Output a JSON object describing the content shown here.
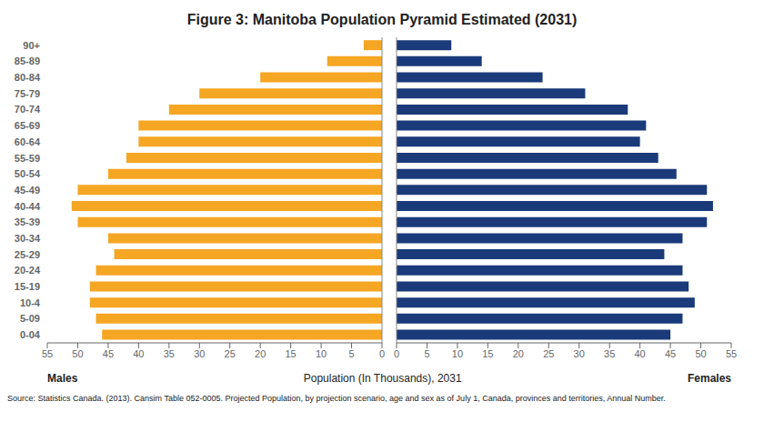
{
  "chart_data": {
    "type": "bar",
    "orientation": "horizontal",
    "title": "Figure 3: Manitoba Population Pyramid Estimated (2031)",
    "categories": [
      "0-04",
      "5-09",
      "10-4",
      "15-19",
      "20-24",
      "25-29",
      "30-34",
      "35-39",
      "40-44",
      "45-49",
      "50-54",
      "55-59",
      "60-64",
      "65-69",
      "70-74",
      "75-79",
      "80-84",
      "85-89",
      "90+"
    ],
    "series": [
      {
        "name": "Males",
        "color": "#F5A623",
        "values": [
          46,
          47,
          48,
          48,
          47,
          44,
          45,
          50,
          51,
          50,
          45,
          42,
          40,
          40,
          35,
          30,
          20,
          9,
          3
        ]
      },
      {
        "name": "Females",
        "color": "#1A3A7A",
        "values": [
          45,
          47,
          49,
          48,
          47,
          44,
          47,
          51,
          52,
          51,
          46,
          43,
          40,
          41,
          38,
          31,
          24,
          14,
          9
        ]
      }
    ],
    "xlabel": "Population (In Thousands), 2031",
    "xlim": [
      0,
      55
    ],
    "xticks": [
      0,
      5,
      10,
      15,
      20,
      25,
      30,
      35,
      40,
      45,
      50,
      55
    ],
    "grid": false,
    "annotations": [
      "Source: Statistics Canada. (2013). Cansim Table 052-0005. Projected Population, by projection scenario, age and sex as of July 1, Canada, provinces and territories, Annual Number."
    ]
  }
}
